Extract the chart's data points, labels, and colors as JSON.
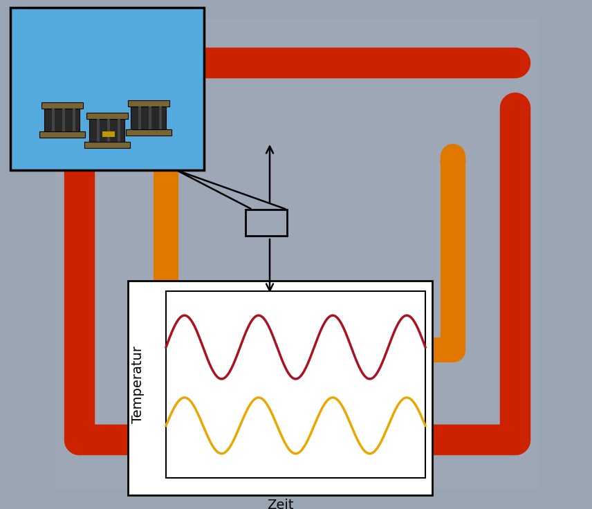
{
  "fig_width": 8.56,
  "fig_height": 7.36,
  "bg_color": "#9aa5b4",
  "red_color": "#cc2200",
  "orange_color": "#e07800",
  "red_tube_lw": 32,
  "orange_tube_lw": 26,
  "inset_bg": "#55aadd",
  "plot_bg": "#ffffff",
  "red_wave_color": "#aa1122",
  "yellow_wave_color": "#e8a800",
  "xlabel": "Zeit",
  "ylabel": "Temperatur",
  "label_fontsize": 14
}
